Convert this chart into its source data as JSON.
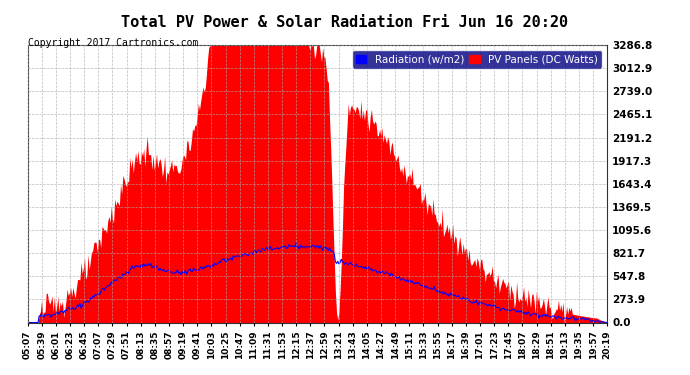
{
  "title": "Total PV Power & Solar Radiation Fri Jun 16 20:20",
  "copyright": "Copyright 2017 Cartronics.com",
  "yticks": [
    0.0,
    273.9,
    547.8,
    821.7,
    1095.6,
    1369.5,
    1643.4,
    1917.3,
    2191.2,
    2465.1,
    2739.0,
    3012.9,
    3286.8
  ],
  "ymax": 3286.8,
  "ymin": 0.0,
  "bg_color": "#ffffff",
  "plot_bg_color": "#ffffff",
  "grid_color": "#aaaaaa",
  "pv_color": "#ff0000",
  "radiation_color": "#0000ff",
  "title_fontsize": 14,
  "legend_radiation_label": "Radiation (w/m2)",
  "legend_pv_label": "PV Panels (DC Watts)",
  "xtick_labels": [
    "05:07",
    "05:39",
    "06:01",
    "06:23",
    "06:45",
    "07:07",
    "07:29",
    "07:51",
    "08:13",
    "08:35",
    "08:57",
    "09:19",
    "09:41",
    "10:03",
    "10:25",
    "10:47",
    "11:09",
    "11:31",
    "11:53",
    "12:15",
    "12:37",
    "12:59",
    "13:21",
    "13:43",
    "14:05",
    "14:27",
    "14:49",
    "15:11",
    "15:33",
    "15:55",
    "16:17",
    "16:39",
    "17:01",
    "17:23",
    "17:45",
    "18:07",
    "18:29",
    "18:51",
    "19:13",
    "19:35",
    "19:57",
    "20:19"
  ]
}
